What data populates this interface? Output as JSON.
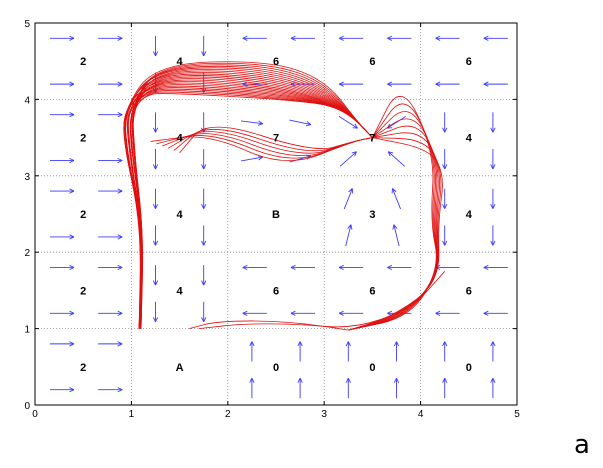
{
  "chart_data": {
    "type": "line",
    "xlim": [
      0,
      5
    ],
    "ylim": [
      0,
      5
    ],
    "x_ticks": [
      "0",
      "1",
      "2",
      "3",
      "4",
      "5"
    ],
    "y_ticks": [
      "0",
      "1",
      "2",
      "3",
      "4",
      "5"
    ],
    "grid": "dotted",
    "colors": {
      "arrows": "#3b3bff",
      "trajectories": "#e01010",
      "grid": "#888888"
    },
    "cell_values": [
      [
        "2",
        "4",
        "6",
        "6",
        "6"
      ],
      [
        "2",
        "4",
        "7",
        "7",
        "4"
      ],
      [
        "2",
        "4",
        "B",
        "3",
        "4"
      ],
      [
        "2",
        "4",
        "6",
        "6",
        "6"
      ],
      [
        "2",
        "A",
        "0",
        "0",
        "0"
      ]
    ],
    "cell_arrows": [
      [
        "right",
        "down",
        "left",
        "left",
        "left"
      ],
      [
        "right",
        "down",
        "toward-7",
        "toward-7",
        "down"
      ],
      [
        "right",
        "down",
        "none",
        "toward-7",
        "down"
      ],
      [
        "right",
        "down",
        "left",
        "left",
        "left"
      ],
      [
        "right",
        "none",
        "up",
        "up",
        "up"
      ]
    ],
    "attractor": {
      "label": "7",
      "x": 3.5,
      "y": 3.5
    },
    "trajectory_starts": [
      {
        "x": 1.08,
        "y": 1.0
      },
      {
        "x": 1.6,
        "y": 1.0
      }
    ],
    "caption": "a"
  }
}
